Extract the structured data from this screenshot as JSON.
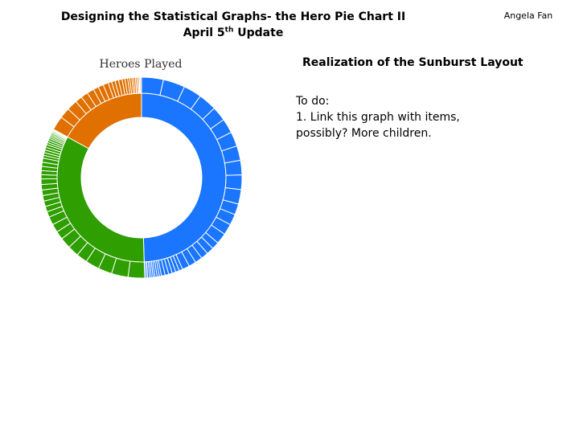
{
  "header": {
    "title_line1": "Designing the Statistical Graphs- the Hero Pie Chart II",
    "title_line2_prefix": "April 5",
    "title_line2_sup": "th",
    "title_line2_suffix": " Update",
    "author": "Angela Fan"
  },
  "section": {
    "heading": "Realization of the Sunburst Layout",
    "todo_title": "To do:",
    "todo_items": [
      "1. Link this graph with items, possibly? More children."
    ]
  },
  "chart_data": {
    "type": "sunburst",
    "title": "Heroes Played",
    "series": [
      {
        "color": "#1a75ff",
        "start": 0,
        "end": 0.495
      },
      {
        "color": "#2e9e00",
        "start": 0.495,
        "end": 0.83
      },
      {
        "color": "#e07000",
        "start": 0.83,
        "end": 1.0
      }
    ],
    "outer_rings": [
      {
        "color": "#1a75ff",
        "weights": [
          6,
          6,
          5,
          5,
          4,
          4,
          4,
          4,
          4,
          4,
          4,
          3,
          3,
          3,
          3,
          2,
          2,
          2,
          2,
          2,
          2,
          1,
          1,
          1,
          1,
          1,
          1,
          0.6,
          0.6,
          0.6,
          0.5,
          0.5,
          0.5,
          0.5,
          0.4,
          0.4
        ]
      },
      {
        "color": "#2e9e00",
        "weights": [
          6,
          6,
          5,
          5,
          4,
          4,
          4,
          3,
          3,
          3,
          2,
          2,
          2,
          2,
          2,
          2,
          2,
          1.5,
          1.5,
          1.5,
          1.5,
          1.5,
          1,
          1,
          1,
          1,
          1,
          0.8,
          0.8,
          0.8,
          0.6,
          0.6,
          0.5,
          0.5,
          0.4,
          0.4,
          0.3,
          0.3
        ]
      },
      {
        "color": "#e07000",
        "weights": [
          4,
          3,
          3,
          2,
          2,
          2,
          1.5,
          1.5,
          1.5,
          1,
          1,
          1,
          1,
          0.8,
          0.8,
          0.6,
          0.6,
          0.5,
          0.5,
          0.4,
          0.4,
          0.3,
          0.3,
          0.3
        ]
      }
    ]
  }
}
